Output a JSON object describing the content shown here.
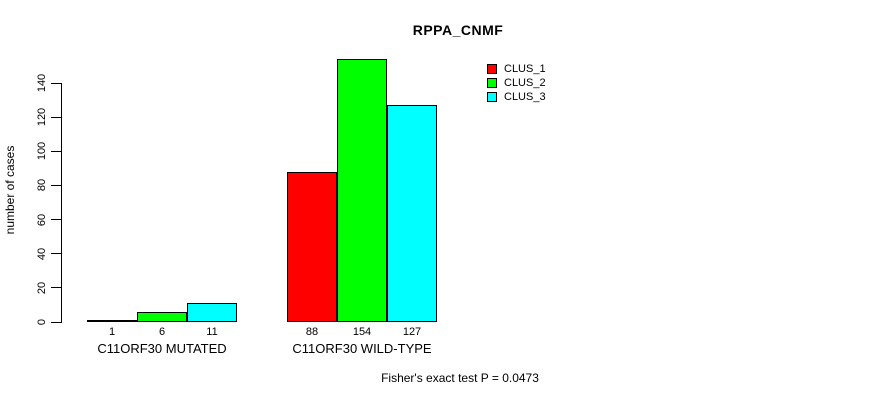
{
  "chart_data": {
    "type": "bar",
    "title": "RPPA_CNMF",
    "ylabel": "number of cases",
    "xlabel": "",
    "groups": [
      "C11ORF30 MUTATED",
      "C11ORF30 WILD-TYPE"
    ],
    "series": [
      {
        "name": "CLUS_1",
        "color": "#ff0000",
        "values": [
          1,
          88
        ]
      },
      {
        "name": "CLUS_2",
        "color": "#00ff00",
        "values": [
          6,
          154
        ]
      },
      {
        "name": "CLUS_3",
        "color": "#00ffff",
        "values": [
          11,
          127
        ]
      }
    ],
    "yticks": [
      0,
      20,
      40,
      60,
      80,
      100,
      120,
      140
    ],
    "ylim": [
      0,
      140
    ],
    "bar_value_labels": [
      [
        1,
        6,
        11
      ],
      [
        88,
        154,
        127
      ]
    ],
    "legend_position": "top-right",
    "grid": false,
    "annotation": "Fisher's exact test P = 0.0473"
  },
  "colors": {
    "background": "#ffffff",
    "axis": "#000000",
    "text": "#000000"
  }
}
